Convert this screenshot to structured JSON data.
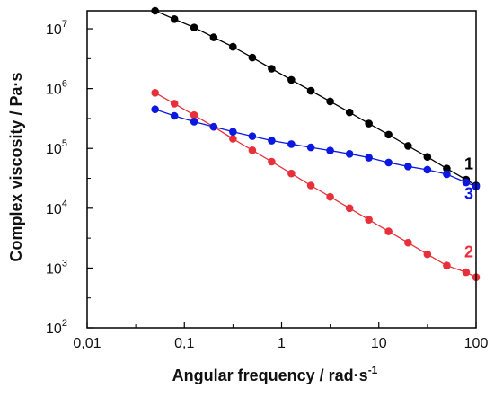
{
  "chart_data": {
    "type": "line",
    "xscale": "log",
    "yscale": "log",
    "xlabel": "Angular frequency / rad·s",
    "xlabel_sup": "-1",
    "ylabel": "Complex viscosity / Pa·s",
    "xlim": [
      0.01,
      100
    ],
    "ylim": [
      100,
      20000000
    ],
    "x_ticks": [
      {
        "value": 0.01,
        "label": "0,01"
      },
      {
        "value": 0.1,
        "label": "0,1"
      },
      {
        "value": 1,
        "label": "1"
      },
      {
        "value": 10,
        "label": "10"
      },
      {
        "value": 100,
        "label": "100"
      }
    ],
    "y_ticks": [
      {
        "value": 100,
        "base": "10",
        "exp": "2"
      },
      {
        "value": 1000,
        "base": "10",
        "exp": "3"
      },
      {
        "value": 10000,
        "base": "10",
        "exp": "4"
      },
      {
        "value": 100000,
        "base": "10",
        "exp": "5"
      },
      {
        "value": 1000000,
        "base": "10",
        "exp": "6"
      },
      {
        "value": 10000000,
        "base": "10",
        "exp": "7"
      }
    ],
    "series": [
      {
        "name": "1",
        "color": "#000000",
        "x": [
          0.05,
          0.079,
          0.126,
          0.2,
          0.316,
          0.5,
          0.79,
          1.26,
          2.0,
          3.16,
          5.0,
          7.9,
          12.6,
          20,
          31.6,
          50,
          79,
          100
        ],
        "y": [
          20000000,
          14500000,
          10500000,
          7200000,
          5000000,
          3300000,
          2150000,
          1400000,
          920000,
          610000,
          400000,
          260000,
          170000,
          110000,
          72000,
          46000,
          30000,
          24000
        ]
      },
      {
        "name": "2",
        "color": "#e8303a",
        "x": [
          0.05,
          0.079,
          0.126,
          0.2,
          0.316,
          0.5,
          0.79,
          1.26,
          2.0,
          3.16,
          5.0,
          7.9,
          12.6,
          20,
          31.6,
          50,
          79,
          100
        ],
        "y": [
          850000,
          560000,
          360000,
          230000,
          145000,
          93000,
          60000,
          38000,
          24000,
          15500,
          10000,
          6400,
          4100,
          2650,
          1700,
          1100,
          850,
          700
        ]
      },
      {
        "name": "3",
        "color": "#0a18e0",
        "x": [
          0.05,
          0.079,
          0.126,
          0.2,
          0.316,
          0.5,
          0.79,
          1.26,
          2.0,
          3.16,
          5.0,
          7.9,
          12.6,
          20,
          31.6,
          50,
          79,
          100
        ],
        "y": [
          450000,
          350000,
          280000,
          230000,
          190000,
          160000,
          135000,
          118000,
          104000,
          92000,
          81000,
          70000,
          58000,
          50000,
          44000,
          37000,
          27000,
          23000
        ]
      }
    ]
  }
}
